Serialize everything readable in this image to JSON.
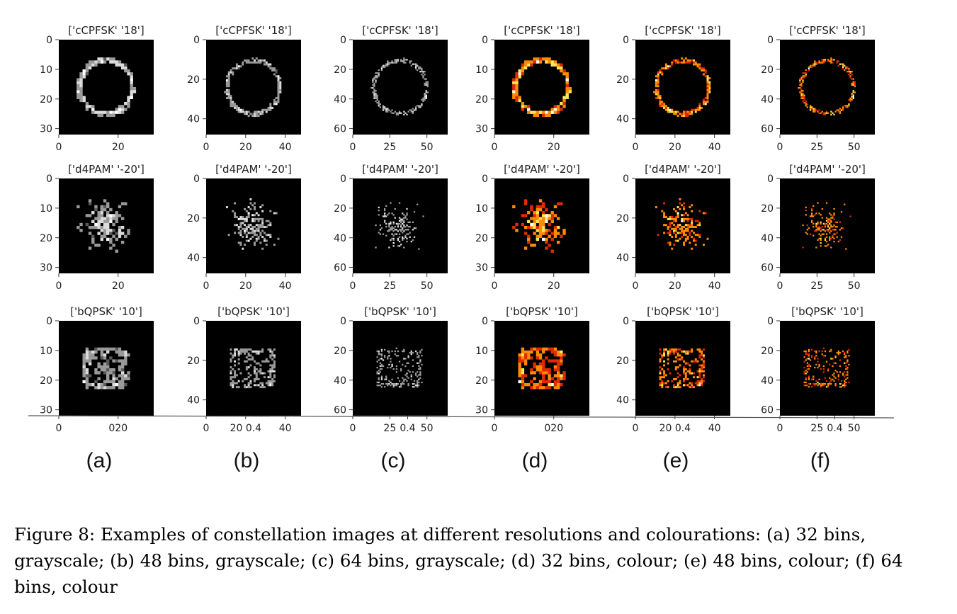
{
  "figure": {
    "number": "Figure 8:",
    "caption": "Examples of constellation images at different resolutions and colourations: (a) 32 bins, grayscale; (b) 48 bins, grayscale; (c) 64 bins, grayscale; (d) 32 bins, colour; (e) 48 bins, colour; (f) 64 bins, colour"
  },
  "rows": [
    {
      "title": "['cCPFSK' '18']",
      "pattern": "ring"
    },
    {
      "title": "['d4PAM' '-20']",
      "pattern": "scatter"
    },
    {
      "title": "['bQPSK' '10']",
      "pattern": "square"
    }
  ],
  "chart_data": {
    "type": "heatmap",
    "columns": [
      {
        "label": "(a)",
        "bins": 32,
        "colouration": "grayscale",
        "yticks": [
          "0",
          "10",
          "20",
          "30"
        ],
        "xticks": [
          "0",
          "20"
        ],
        "xticks_bottom": [
          "0",
          "020"
        ]
      },
      {
        "label": "(b)",
        "bins": 48,
        "colouration": "grayscale",
        "yticks": [
          "0",
          "20",
          "40"
        ],
        "xticks": [
          "0",
          "20",
          "40"
        ],
        "xticks_bottom": [
          "0",
          "20 0.4",
          "40"
        ]
      },
      {
        "label": "(c)",
        "bins": 64,
        "colouration": "grayscale",
        "yticks": [
          "0",
          "20",
          "40",
          "60"
        ],
        "xticks": [
          "0",
          "25",
          "50"
        ],
        "xticks_bottom": [
          "0",
          "25",
          "0.4",
          "50"
        ]
      },
      {
        "label": "(d)",
        "bins": 32,
        "colouration": "colour",
        "yticks": [
          "0",
          "10",
          "20",
          "30"
        ],
        "xticks": [
          "0",
          "20"
        ],
        "xticks_bottom": [
          "0",
          "020"
        ]
      },
      {
        "label": "(e)",
        "bins": 48,
        "colouration": "colour",
        "yticks": [
          "0",
          "20",
          "40"
        ],
        "xticks": [
          "0",
          "20",
          "40"
        ],
        "xticks_bottom": [
          "0",
          "20 0.4",
          "40"
        ]
      },
      {
        "label": "(f)",
        "bins": 64,
        "colouration": "colour",
        "yticks": [
          "0",
          "20",
          "40",
          "60"
        ],
        "xticks": [
          "0",
          "25",
          "50"
        ],
        "xticks_bottom": [
          "0",
          "25",
          "0.4",
          "50"
        ]
      }
    ],
    "colormaps": {
      "grayscale": [
        "#000000",
        "#5a5a5a",
        "#9a9a9a",
        "#dcdcdc",
        "#ffffff"
      ],
      "colour": [
        "#000000",
        "#8c0b00",
        "#e02a00",
        "#ff8c00",
        "#ffe65a",
        "#ffffff"
      ]
    }
  }
}
